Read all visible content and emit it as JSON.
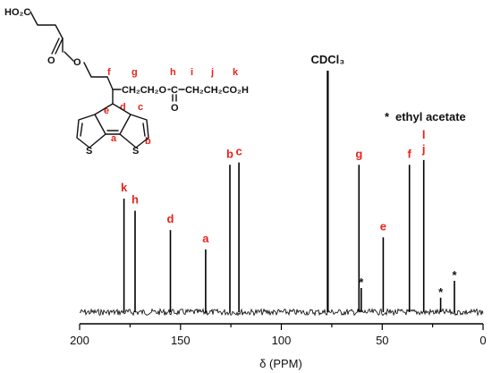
{
  "chart_data": {
    "type": "line",
    "title": "",
    "xlabel": "δ (PPM)",
    "ylabel": "",
    "xlim": [
      200,
      0
    ],
    "x_reversed": true,
    "x_ticks": [
      200,
      150,
      100,
      50,
      0
    ],
    "peaks": [
      {
        "label": "k",
        "ppm": 178.0,
        "intensity": 0.47,
        "color": "#e8231c"
      },
      {
        "label": "h",
        "ppm": 172.5,
        "intensity": 0.42,
        "color": "#e8231c"
      },
      {
        "label": "d",
        "ppm": 155.0,
        "intensity": 0.34,
        "color": "#e8231c"
      },
      {
        "label": "a",
        "ppm": 137.5,
        "intensity": 0.26,
        "color": "#e8231c"
      },
      {
        "label": "b",
        "ppm": 125.5,
        "intensity": 0.61,
        "color": "#e8231c"
      },
      {
        "label": "c",
        "ppm": 121.0,
        "intensity": 0.62,
        "color": "#e8231c"
      },
      {
        "label": "CDCl3",
        "ppm": 77.0,
        "intensity": 1.0,
        "color": "#111111",
        "display": "CDCl₃"
      },
      {
        "label": "g",
        "ppm": 61.5,
        "intensity": 0.61,
        "color": "#e8231c"
      },
      {
        "label": "*",
        "ppm": 60.4,
        "intensity": 0.1,
        "color": "#111111"
      },
      {
        "label": "e",
        "ppm": 49.5,
        "intensity": 0.31,
        "color": "#e8231c"
      },
      {
        "label": "f",
        "ppm": 36.5,
        "intensity": 0.61,
        "color": "#e8231c"
      },
      {
        "label": "l",
        "ppm": 29.4,
        "intensity": 0.61,
        "color": "#e8231c",
        "stack_index": 1
      },
      {
        "label": "j",
        "ppm": 29.4,
        "intensity": 0.63,
        "color": "#e8231c"
      },
      {
        "label": "*",
        "ppm": 21.0,
        "intensity": 0.06,
        "color": "#111111"
      },
      {
        "label": "*",
        "ppm": 14.2,
        "intensity": 0.13,
        "color": "#111111"
      }
    ],
    "legend": {
      "marker": "*",
      "text": "ethyl acetate",
      "position": "top-right"
    }
  },
  "structure": {
    "texts": {
      "ho2c": "HO₂C",
      "o1": "O",
      "o2": "O",
      "ch2ch2o": "CH₂CH₂O",
      "c_ester": "C",
      "o_carbonyl": "O",
      "ch2ch2co2h": "CH₂CH₂CO₂H",
      "s_left": "S",
      "s_right": "S"
    },
    "atom_labels": [
      "f",
      "g",
      "h",
      "i",
      "j",
      "k",
      "e",
      "d",
      "c",
      "a",
      "b"
    ]
  }
}
